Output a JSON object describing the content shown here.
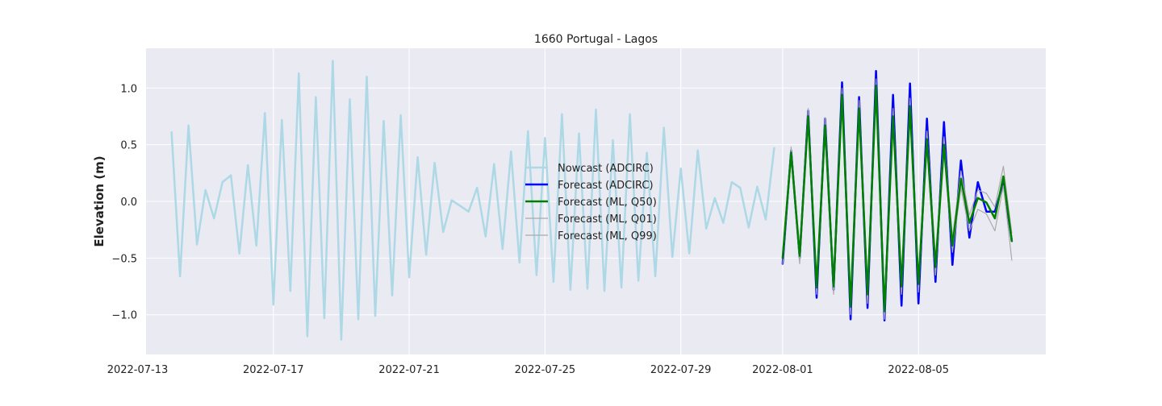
{
  "chart_data": {
    "type": "line",
    "title": "1660 Portugal - Lagos",
    "xlabel": "",
    "ylabel": "Elevation (m)",
    "x_type": "date",
    "xlim": [
      "2022-07-13T06:00",
      "2022-08-08T18:00"
    ],
    "ylim": [
      -1.35,
      1.35
    ],
    "x_ticks": [
      "2022-07-13",
      "2022-07-17",
      "2022-07-21",
      "2022-07-25",
      "2022-07-29",
      "2022-08-01",
      "2022-08-05"
    ],
    "y_ticks": [
      -1.0,
      -0.5,
      0.0,
      0.5,
      1.0
    ],
    "y_tick_labels": [
      "−1.0",
      "−0.5",
      "0.0",
      "0.5",
      "1.0"
    ],
    "grid": true,
    "background": "#eaeaf2",
    "legend_position": "center",
    "series": [
      {
        "name": "Nowcast (ADCIRC)",
        "color": "#add8e6",
        "width": 2.5,
        "points": [
          [
            "2022-07-14T00:00",
            0.61
          ],
          [
            "2022-07-14T06:00",
            -0.66
          ],
          [
            "2022-07-14T12:00",
            0.67
          ],
          [
            "2022-07-14T18:00",
            -0.38
          ],
          [
            "2022-07-15T00:00",
            0.1
          ],
          [
            "2022-07-15T06:00",
            -0.15
          ],
          [
            "2022-07-15T12:00",
            0.17
          ],
          [
            "2022-07-15T18:00",
            0.23
          ],
          [
            "2022-07-16T00:00",
            -0.46
          ],
          [
            "2022-07-16T06:00",
            0.32
          ],
          [
            "2022-07-16T12:00",
            -0.39
          ],
          [
            "2022-07-16T18:00",
            0.78
          ],
          [
            "2022-07-17T00:00",
            -0.91
          ],
          [
            "2022-07-17T06:00",
            0.72
          ],
          [
            "2022-07-17T12:00",
            -0.79
          ],
          [
            "2022-07-17T18:00",
            1.13
          ],
          [
            "2022-07-18T00:00",
            -1.19
          ],
          [
            "2022-07-18T06:00",
            0.92
          ],
          [
            "2022-07-18T12:00",
            -1.03
          ],
          [
            "2022-07-18T18:00",
            1.24
          ],
          [
            "2022-07-19T00:00",
            -1.22
          ],
          [
            "2022-07-19T06:00",
            0.9
          ],
          [
            "2022-07-19T12:00",
            -1.04
          ],
          [
            "2022-07-19T18:00",
            1.1
          ],
          [
            "2022-07-20T00:00",
            -1.01
          ],
          [
            "2022-07-20T06:00",
            0.71
          ],
          [
            "2022-07-20T12:00",
            -0.83
          ],
          [
            "2022-07-20T18:00",
            0.76
          ],
          [
            "2022-07-21T00:00",
            -0.67
          ],
          [
            "2022-07-21T06:00",
            0.39
          ],
          [
            "2022-07-21T12:00",
            -0.47
          ],
          [
            "2022-07-21T18:00",
            0.34
          ],
          [
            "2022-07-22T00:00",
            -0.27
          ],
          [
            "2022-07-22T06:00",
            0.01
          ],
          [
            "2022-07-22T12:00",
            -0.04
          ],
          [
            "2022-07-22T18:00",
            -0.09
          ],
          [
            "2022-07-23T00:00",
            0.12
          ],
          [
            "2022-07-23T06:00",
            -0.31
          ],
          [
            "2022-07-23T12:00",
            0.33
          ],
          [
            "2022-07-23T18:00",
            -0.42
          ],
          [
            "2022-07-24T00:00",
            0.44
          ],
          [
            "2022-07-24T06:00",
            -0.54
          ],
          [
            "2022-07-24T12:00",
            0.62
          ],
          [
            "2022-07-24T18:00",
            -0.65
          ],
          [
            "2022-07-25T00:00",
            0.56
          ],
          [
            "2022-07-25T06:00",
            -0.71
          ],
          [
            "2022-07-25T12:00",
            0.77
          ],
          [
            "2022-07-25T18:00",
            -0.78
          ],
          [
            "2022-07-26T00:00",
            0.6
          ],
          [
            "2022-07-26T06:00",
            -0.77
          ],
          [
            "2022-07-26T12:00",
            0.81
          ],
          [
            "2022-07-26T18:00",
            -0.79
          ],
          [
            "2022-07-27T00:00",
            0.54
          ],
          [
            "2022-07-27T06:00",
            -0.76
          ],
          [
            "2022-07-27T12:00",
            0.77
          ],
          [
            "2022-07-27T18:00",
            -0.7
          ],
          [
            "2022-07-28T00:00",
            0.43
          ],
          [
            "2022-07-28T06:00",
            -0.66
          ],
          [
            "2022-07-28T12:00",
            0.65
          ],
          [
            "2022-07-28T18:00",
            -0.49
          ],
          [
            "2022-07-29T00:00",
            0.29
          ],
          [
            "2022-07-29T06:00",
            -0.46
          ],
          [
            "2022-07-29T12:00",
            0.45
          ],
          [
            "2022-07-29T18:00",
            -0.24
          ],
          [
            "2022-07-30T00:00",
            0.03
          ],
          [
            "2022-07-30T06:00",
            -0.19
          ],
          [
            "2022-07-30T12:00",
            0.17
          ],
          [
            "2022-07-30T18:00",
            0.12
          ],
          [
            "2022-07-31T00:00",
            -0.23
          ],
          [
            "2022-07-31T06:00",
            0.13
          ],
          [
            "2022-07-31T12:00",
            -0.16
          ],
          [
            "2022-07-31T18:00",
            0.47
          ]
        ]
      },
      {
        "name": "Forecast (ADCIRC)",
        "color": "#0000ff",
        "width": 2.5,
        "points": [
          [
            "2022-08-01T00:00",
            -0.55
          ],
          [
            "2022-08-01T06:00",
            0.45
          ],
          [
            "2022-08-01T12:00",
            -0.5
          ],
          [
            "2022-08-01T18:00",
            0.8
          ],
          [
            "2022-08-02T00:00",
            -0.85
          ],
          [
            "2022-08-02T06:00",
            0.73
          ],
          [
            "2022-08-02T12:00",
            -0.78
          ],
          [
            "2022-08-02T18:00",
            1.05
          ],
          [
            "2022-08-03T00:00",
            -1.04
          ],
          [
            "2022-08-03T06:00",
            0.92
          ],
          [
            "2022-08-03T12:00",
            -0.94
          ],
          [
            "2022-08-03T18:00",
            1.15
          ],
          [
            "2022-08-04T00:00",
            -1.05
          ],
          [
            "2022-08-04T06:00",
            0.94
          ],
          [
            "2022-08-04T12:00",
            -0.92
          ],
          [
            "2022-08-04T18:00",
            1.04
          ],
          [
            "2022-08-05T00:00",
            -0.9
          ],
          [
            "2022-08-05T06:00",
            0.73
          ],
          [
            "2022-08-05T12:00",
            -0.71
          ],
          [
            "2022-08-05T18:00",
            0.7
          ],
          [
            "2022-08-06T00:00",
            -0.56
          ],
          [
            "2022-08-06T06:00",
            0.36
          ],
          [
            "2022-08-06T12:00",
            -0.32
          ],
          [
            "2022-08-06T18:00",
            0.17
          ],
          [
            "2022-08-07T00:00",
            -0.09
          ],
          [
            "2022-08-07T06:00",
            -0.09
          ],
          [
            "2022-08-07T12:00",
            0.17
          ],
          [
            "2022-08-07T18:00",
            -0.35
          ]
        ]
      },
      {
        "name": "Forecast (ML, Q50)",
        "color": "#008000",
        "width": 2.5,
        "points": [
          [
            "2022-08-01T00:00",
            -0.5
          ],
          [
            "2022-08-01T06:00",
            0.43
          ],
          [
            "2022-08-01T12:00",
            -0.48
          ],
          [
            "2022-08-01T18:00",
            0.75
          ],
          [
            "2022-08-02T00:00",
            -0.76
          ],
          [
            "2022-08-02T06:00",
            0.67
          ],
          [
            "2022-08-02T12:00",
            -0.75
          ],
          [
            "2022-08-02T18:00",
            0.94
          ],
          [
            "2022-08-03T00:00",
            -0.93
          ],
          [
            "2022-08-03T06:00",
            0.82
          ],
          [
            "2022-08-03T12:00",
            -0.82
          ],
          [
            "2022-08-03T18:00",
            1.02
          ],
          [
            "2022-08-04T00:00",
            -0.97
          ],
          [
            "2022-08-04T06:00",
            0.75
          ],
          [
            "2022-08-04T12:00",
            -0.75
          ],
          [
            "2022-08-04T18:00",
            0.84
          ],
          [
            "2022-08-05T00:00",
            -0.73
          ],
          [
            "2022-08-05T06:00",
            0.55
          ],
          [
            "2022-08-05T12:00",
            -0.58
          ],
          [
            "2022-08-05T18:00",
            0.5
          ],
          [
            "2022-08-06T00:00",
            -0.39
          ],
          [
            "2022-08-06T06:00",
            0.2
          ],
          [
            "2022-08-06T12:00",
            -0.19
          ],
          [
            "2022-08-06T18:00",
            0.03
          ],
          [
            "2022-08-07T00:00",
            -0.01
          ],
          [
            "2022-08-07T06:00",
            -0.15
          ],
          [
            "2022-08-07T12:00",
            0.22
          ],
          [
            "2022-08-07T18:00",
            -0.35
          ]
        ]
      },
      {
        "name": "Forecast (ML, Q01)",
        "color": "#aaaaaa",
        "width": 1.2,
        "points": [
          [
            "2022-08-01T00:00",
            -0.55
          ],
          [
            "2022-08-01T06:00",
            0.38
          ],
          [
            "2022-08-01T12:00",
            -0.55
          ],
          [
            "2022-08-01T18:00",
            0.68
          ],
          [
            "2022-08-02T00:00",
            -0.82
          ],
          [
            "2022-08-02T06:00",
            0.6
          ],
          [
            "2022-08-02T12:00",
            -0.82
          ],
          [
            "2022-08-02T18:00",
            0.88
          ],
          [
            "2022-08-03T00:00",
            -1.0
          ],
          [
            "2022-08-03T06:00",
            0.75
          ],
          [
            "2022-08-03T12:00",
            -0.9
          ],
          [
            "2022-08-03T18:00",
            0.95
          ],
          [
            "2022-08-04T00:00",
            -1.04
          ],
          [
            "2022-08-04T06:00",
            0.68
          ],
          [
            "2022-08-04T12:00",
            -0.82
          ],
          [
            "2022-08-04T18:00",
            0.76
          ],
          [
            "2022-08-05T00:00",
            -0.8
          ],
          [
            "2022-08-05T06:00",
            0.47
          ],
          [
            "2022-08-05T12:00",
            -0.65
          ],
          [
            "2022-08-05T18:00",
            0.42
          ],
          [
            "2022-08-06T00:00",
            -0.45
          ],
          [
            "2022-08-06T06:00",
            0.12
          ],
          [
            "2022-08-06T12:00",
            -0.26
          ],
          [
            "2022-08-06T18:00",
            -0.07
          ],
          [
            "2022-08-07T00:00",
            -0.11
          ],
          [
            "2022-08-07T06:00",
            -0.26
          ],
          [
            "2022-08-07T12:00",
            0.14
          ],
          [
            "2022-08-07T18:00",
            -0.52
          ]
        ]
      },
      {
        "name": "Forecast (ML, Q99)",
        "color": "#aaaaaa",
        "width": 1.2,
        "points": [
          [
            "2022-08-01T00:00",
            -0.45
          ],
          [
            "2022-08-01T06:00",
            0.48
          ],
          [
            "2022-08-01T12:00",
            -0.41
          ],
          [
            "2022-08-01T18:00",
            0.82
          ],
          [
            "2022-08-02T00:00",
            -0.7
          ],
          [
            "2022-08-02T06:00",
            0.74
          ],
          [
            "2022-08-02T12:00",
            -0.68
          ],
          [
            "2022-08-02T18:00",
            1.0
          ],
          [
            "2022-08-03T00:00",
            -0.86
          ],
          [
            "2022-08-03T06:00",
            0.89
          ],
          [
            "2022-08-03T12:00",
            -0.74
          ],
          [
            "2022-08-03T18:00",
            1.08
          ],
          [
            "2022-08-04T00:00",
            -0.9
          ],
          [
            "2022-08-04T06:00",
            0.82
          ],
          [
            "2022-08-04T12:00",
            -0.67
          ],
          [
            "2022-08-04T18:00",
            0.91
          ],
          [
            "2022-08-05T00:00",
            -0.65
          ],
          [
            "2022-08-05T06:00",
            0.62
          ],
          [
            "2022-08-05T12:00",
            -0.5
          ],
          [
            "2022-08-05T18:00",
            0.57
          ],
          [
            "2022-08-06T00:00",
            -0.32
          ],
          [
            "2022-08-06T06:00",
            0.27
          ],
          [
            "2022-08-06T12:00",
            -0.12
          ],
          [
            "2022-08-06T18:00",
            0.1
          ],
          [
            "2022-08-07T00:00",
            0.07
          ],
          [
            "2022-08-07T06:00",
            -0.05
          ],
          [
            "2022-08-07T12:00",
            0.31
          ],
          [
            "2022-08-07T18:00",
            -0.28
          ]
        ]
      }
    ]
  }
}
